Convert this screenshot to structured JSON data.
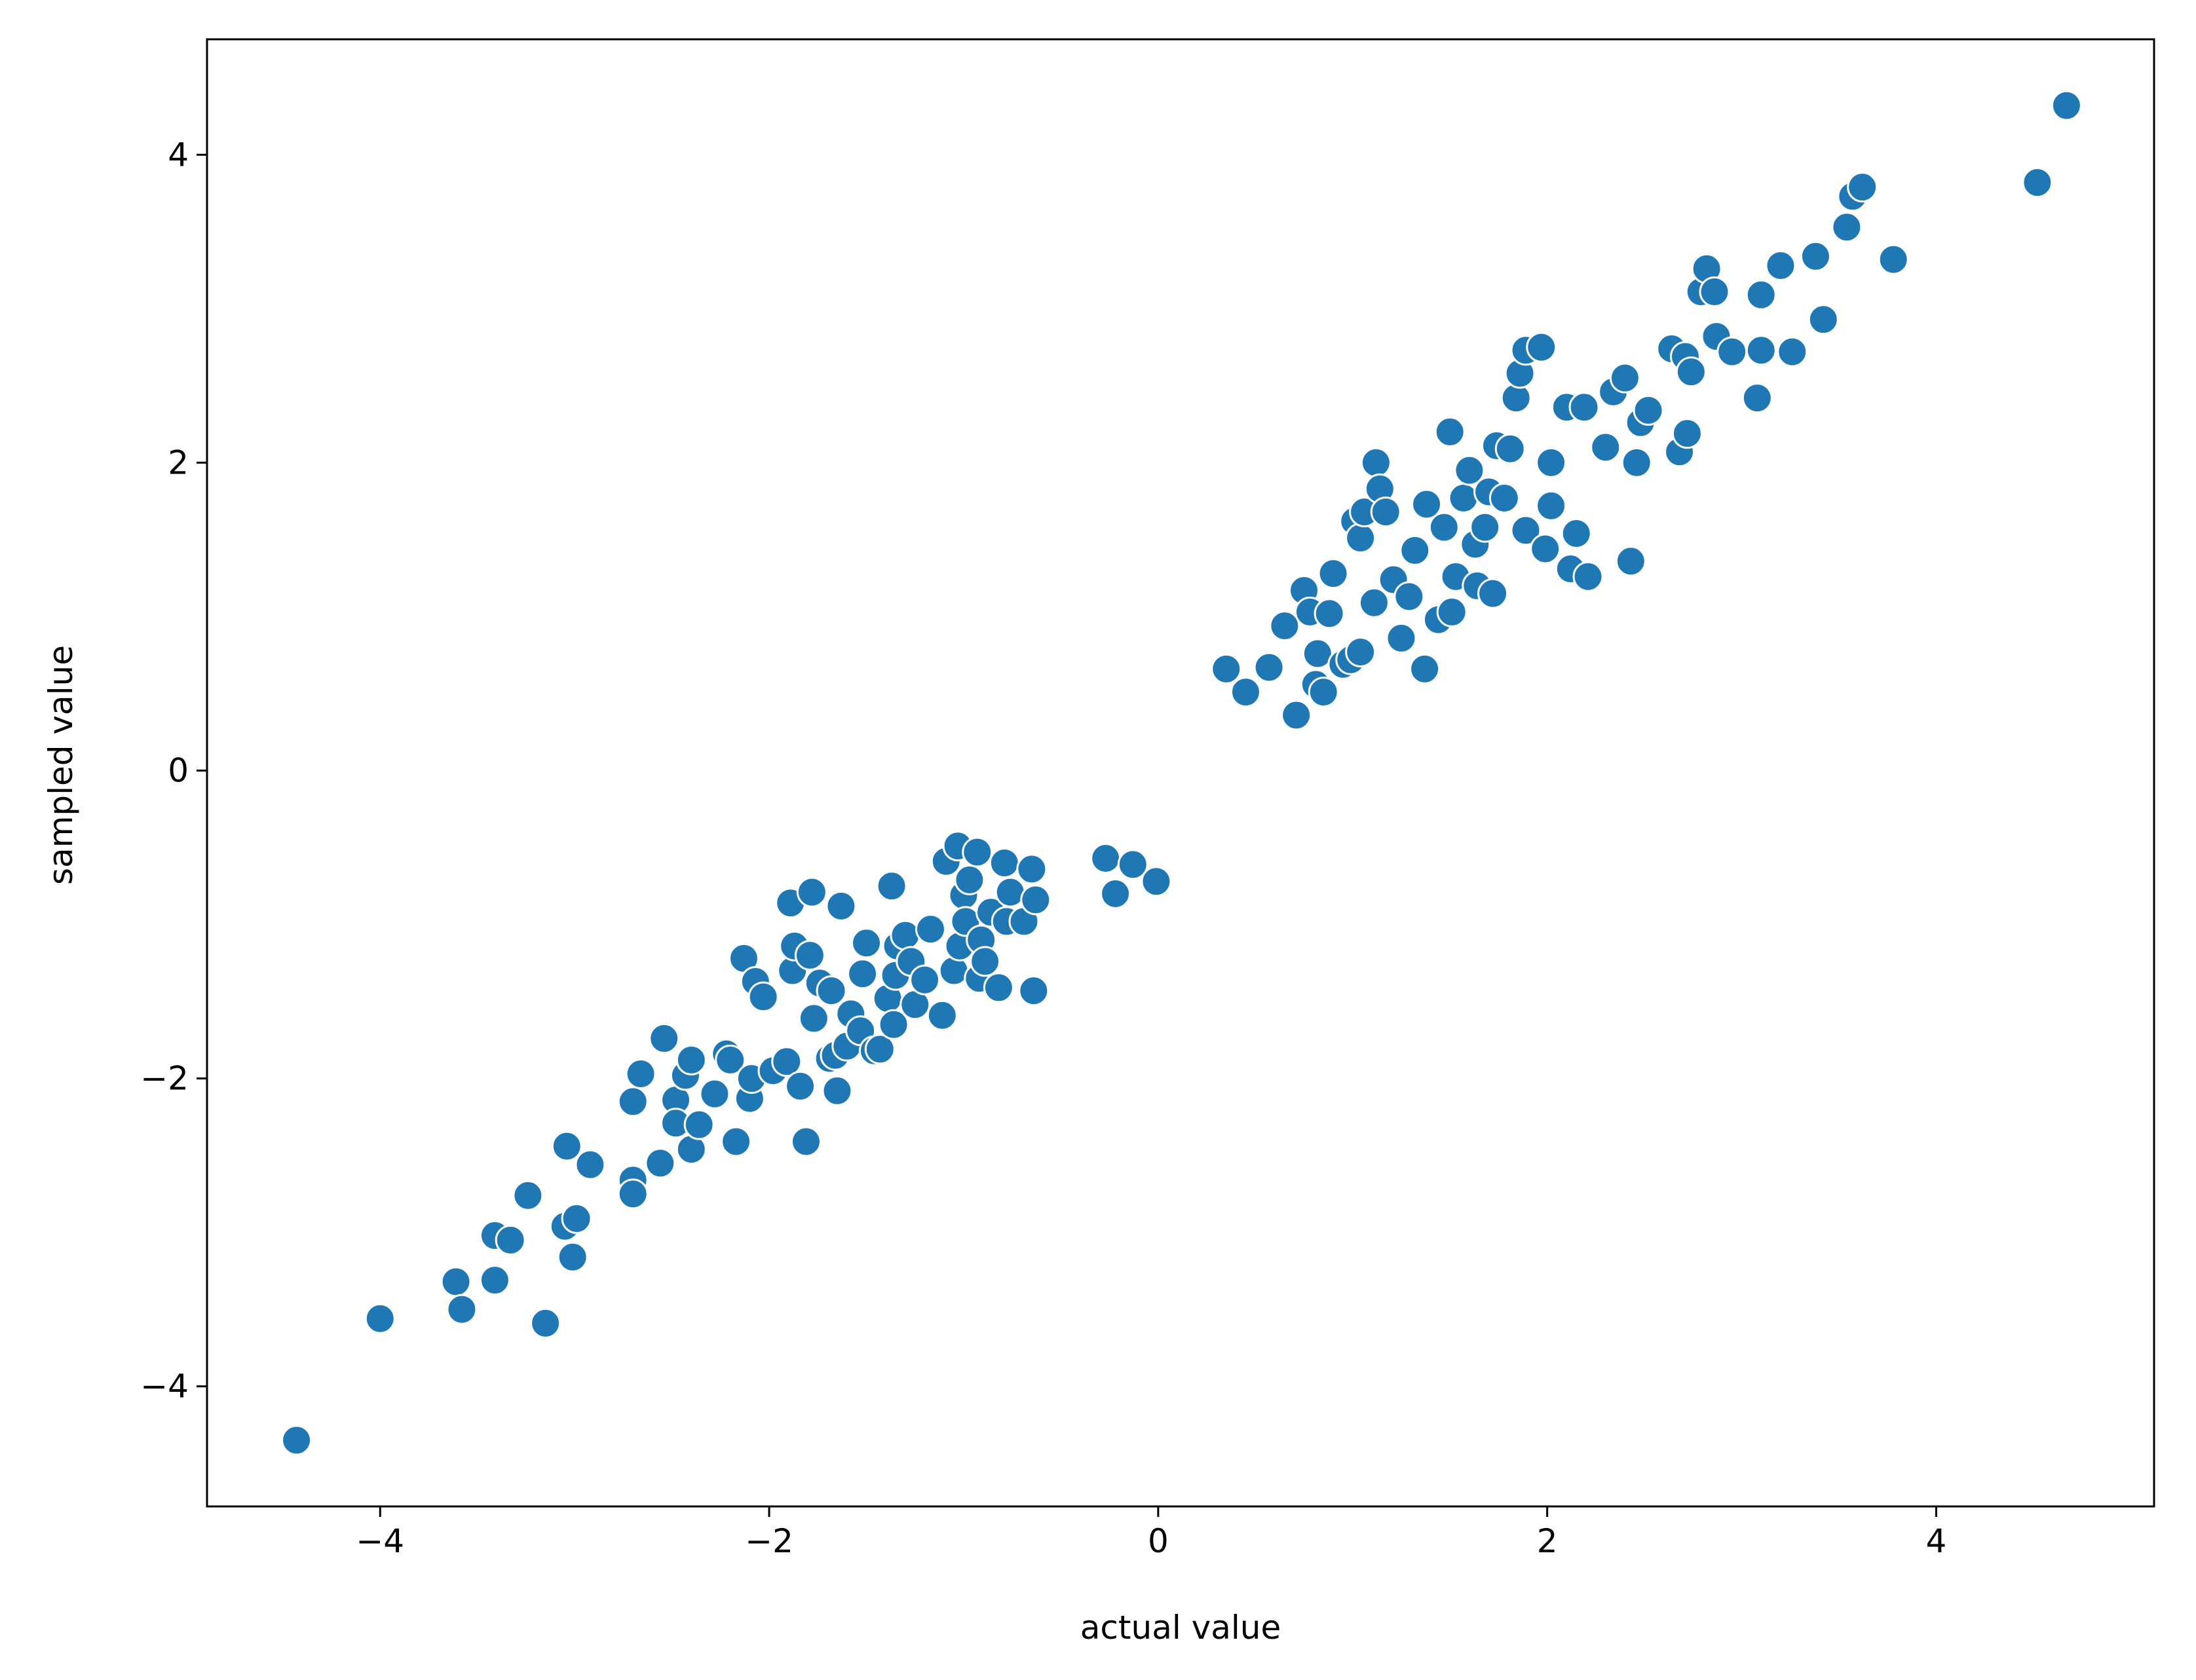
{
  "chart_data": {
    "type": "scatter",
    "xlabel": "actual value",
    "ylabel": "sampled value",
    "color": "#1f77b4",
    "xlim": [
      -4.89,
      5.12
    ],
    "ylim": [
      -4.78,
      4.75
    ],
    "xticks": [
      {
        "value": -4,
        "label": "−4"
      },
      {
        "value": -2,
        "label": "−2"
      },
      0,
      2,
      4
    ],
    "yticks": [
      {
        "value": -4,
        "label": "−4"
      },
      {
        "value": -2,
        "label": "−2"
      },
      0,
      2,
      4
    ],
    "x": [
      -4.43,
      -4.0,
      -3.61,
      -3.58,
      -3.41,
      -3.41,
      -3.33,
      -3.24,
      -3.15,
      -3.04,
      -3.05,
      -3.01,
      -2.99,
      -2.92,
      -2.7,
      -2.7,
      -2.7,
      -2.66,
      -2.56,
      -2.54,
      -2.48,
      -2.48,
      -2.43,
      -2.4,
      -2.4,
      -2.36,
      -2.28,
      -2.22,
      -2.2,
      -2.17,
      -2.13,
      -2.1,
      -2.09,
      -2.07,
      -2.03,
      -1.98,
      -1.91,
      -1.89,
      -1.88,
      -1.87,
      -1.84,
      -1.81,
      -1.78,
      -1.79,
      -1.77,
      -1.74,
      -1.69,
      -1.68,
      -1.66,
      -1.65,
      -1.63,
      -1.6,
      -1.58,
      -1.53,
      -1.52,
      -1.5,
      -1.46,
      -1.43,
      -1.39,
      -1.37,
      -1.36,
      -1.35,
      -1.34,
      -1.3,
      -1.27,
      -1.25,
      -1.2,
      -1.17,
      -1.11,
      -1.09,
      -1.05,
      -1.03,
      -1.02,
      -1.0,
      -0.99,
      -0.97,
      -0.93,
      -0.92,
      -0.91,
      -0.89,
      -0.86,
      -0.82,
      -0.79,
      -0.78,
      -0.76,
      -0.69,
      -0.65,
      -0.64,
      -0.63,
      -0.27,
      -0.22,
      -0.13,
      -0.01,
      0.35,
      0.45,
      0.57,
      0.65,
      0.71,
      0.75,
      0.78,
      0.81,
      0.82,
      0.85,
      0.88,
      0.9,
      0.95,
      0.99,
      1.01,
      1.04,
      1.04,
      1.06,
      1.11,
      1.12,
      1.14,
      1.17,
      1.21,
      1.25,
      1.29,
      1.32,
      1.37,
      1.38,
      1.44,
      1.47,
      1.5,
      1.51,
      1.53,
      1.57,
      1.6,
      1.63,
      1.64,
      1.68,
      1.7,
      1.72,
      1.74,
      1.78,
      1.81,
      1.84,
      1.86,
      1.89,
      1.89,
      1.97,
      1.99,
      2.02,
      2.02,
      2.1,
      2.12,
      2.15,
      2.19,
      2.21,
      2.3,
      2.34,
      2.4,
      2.43,
      2.46,
      2.48,
      2.52,
      2.64,
      2.68,
      2.71,
      2.72,
      2.74,
      2.79,
      2.82,
      2.86,
      2.87,
      2.95,
      3.08,
      3.1,
      3.1,
      3.2,
      3.26,
      3.38,
      3.42,
      3.54,
      3.57,
      3.62,
      3.78,
      4.52,
      4.67
    ],
    "y": [
      -4.35,
      -3.56,
      -3.32,
      -3.5,
      -3.02,
      -3.31,
      -3.05,
      -2.76,
      -3.59,
      -2.44,
      -2.96,
      -3.16,
      -2.91,
      -2.56,
      -2.66,
      -2.75,
      -2.15,
      -1.97,
      -2.55,
      -1.74,
      -2.14,
      -2.29,
      -1.98,
      -2.46,
      -1.88,
      -2.3,
      -2.1,
      -1.84,
      -1.88,
      -2.41,
      -1.22,
      -2.13,
      -2.0,
      -1.37,
      -1.47,
      -1.95,
      -1.89,
      -0.86,
      -1.3,
      -1.14,
      -2.05,
      -2.41,
      -0.79,
      -1.2,
      -1.61,
      -1.38,
      -1.87,
      -1.43,
      -1.85,
      -2.08,
      -0.88,
      -1.79,
      -1.58,
      -1.69,
      -1.32,
      -1.12,
      -1.82,
      -1.81,
      -1.48,
      -0.75,
      -1.65,
      -1.33,
      -1.14,
      -1.07,
      -1.24,
      -1.52,
      -1.36,
      -1.03,
      -1.59,
      -0.59,
      -1.3,
      -0.49,
      -1.14,
      -0.81,
      -0.98,
      -0.71,
      -0.53,
      -1.35,
      -1.1,
      -1.24,
      -0.92,
      -1.41,
      -0.6,
      -0.98,
      -0.79,
      -0.98,
      -0.64,
      -1.43,
      -0.84,
      -0.57,
      -0.8,
      -0.61,
      -0.72,
      0.66,
      0.51,
      0.67,
      0.94,
      0.36,
      1.17,
      1.03,
      0.56,
      0.76,
      0.51,
      1.02,
      1.28,
      0.69,
      0.72,
      1.62,
      0.77,
      1.51,
      1.68,
      1.09,
      2.0,
      1.83,
      1.68,
      1.24,
      0.86,
      1.13,
      1.43,
      0.66,
      1.73,
      0.98,
      1.58,
      2.2,
      1.03,
      1.26,
      1.77,
      1.95,
      1.47,
      1.2,
      1.58,
      1.81,
      1.15,
      2.11,
      1.77,
      2.09,
      2.42,
      2.58,
      2.73,
      1.56,
      2.75,
      1.44,
      2.0,
      1.72,
      2.36,
      1.31,
      1.54,
      2.36,
      1.26,
      2.1,
      2.46,
      2.55,
      1.36,
      2.0,
      2.26,
      2.34,
      2.74,
      2.07,
      2.69,
      2.19,
      2.59,
      3.11,
      3.26,
      3.11,
      2.82,
      2.72,
      2.42,
      2.73,
      3.09,
      3.28,
      2.72,
      3.34,
      2.93,
      3.53,
      3.73,
      3.79,
      3.32,
      3.82,
      4.32
    ]
  }
}
